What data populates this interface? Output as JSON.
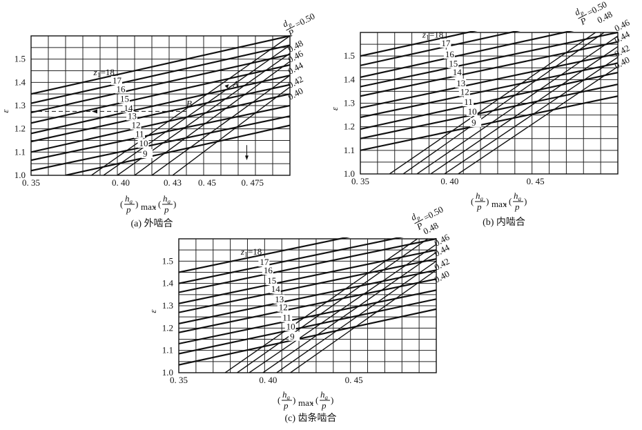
{
  "chart_data": [
    {
      "type": "line",
      "caption": "(a) 外啮合",
      "xlabel_ha": "h",
      "xlabel_sub_a": "a",
      "xlabel_p": "p",
      "xlabel_max": "max",
      "ylabel": "ε",
      "xlim": [
        0.35,
        0.5
      ],
      "ylim": [
        1.0,
        1.6
      ],
      "xticks": [
        "0. 35",
        "0. 40",
        "0. 43",
        "0. 45",
        "0. 475"
      ],
      "xtick_values": [
        0.35,
        0.4,
        0.43,
        0.45,
        0.475
      ],
      "yticks": [
        "1.0",
        "1.1",
        "1.2",
        "1.3",
        "1.4",
        "1.5"
      ],
      "ytick_values": [
        1.0,
        1.1,
        1.2,
        1.3,
        1.4,
        1.5
      ],
      "z_header": "z",
      "z_sub": "1",
      "z_labels": [
        "=18",
        "17",
        "16",
        "15",
        "14",
        "13",
        "12",
        "11",
        "10",
        "9"
      ],
      "z_lines": [
        {
          "z": 18,
          "points": [
            [
              0.35,
              1.35
            ],
            [
              0.5,
              1.6
            ]
          ]
        },
        {
          "z": 17,
          "points": [
            [
              0.35,
              1.31
            ],
            [
              0.5,
              1.56
            ]
          ]
        },
        {
          "z": 16,
          "points": [
            [
              0.35,
              1.27
            ],
            [
              0.5,
              1.52
            ]
          ]
        },
        {
          "z": 15,
          "points": [
            [
              0.35,
              1.225
            ],
            [
              0.5,
              1.475
            ]
          ]
        },
        {
          "z": 14,
          "points": [
            [
              0.35,
              1.18
            ],
            [
              0.5,
              1.43
            ]
          ]
        },
        {
          "z": 13,
          "points": [
            [
              0.35,
              1.145
            ],
            [
              0.5,
              1.39
            ]
          ]
        },
        {
          "z": 12,
          "points": [
            [
              0.35,
              1.1
            ],
            [
              0.5,
              1.35
            ]
          ]
        },
        {
          "z": 11,
          "points": [
            [
              0.35,
              1.065
            ],
            [
              0.5,
              1.3
            ]
          ]
        },
        {
          "z": 10,
          "points": [
            [
              0.35,
              1.02
            ],
            [
              0.5,
              1.255
            ]
          ]
        },
        {
          "z": 9,
          "points": [
            [
              0.37,
              1.0
            ],
            [
              0.5,
              1.215
            ]
          ]
        }
      ],
      "d_header_num": "d",
      "d_header_sub": "p",
      "d_header_den": "P",
      "d_labels": [
        "=0.50",
        "0.48",
        "0.46",
        "0.44",
        "0.42",
        "0.40"
      ],
      "d_lines": [
        {
          "d": 0.5,
          "points": [
            [
              0.385,
              1.0
            ],
            [
              0.5,
              1.6
            ]
          ]
        },
        {
          "d": 0.48,
          "points": [
            [
              0.392,
              1.0
            ],
            [
              0.5,
              1.56
            ]
          ]
        },
        {
          "d": 0.46,
          "points": [
            [
              0.4,
              1.0
            ],
            [
              0.5,
              1.525
            ]
          ]
        },
        {
          "d": 0.44,
          "points": [
            [
              0.41,
              1.0
            ],
            [
              0.5,
              1.49
            ]
          ]
        },
        {
          "d": 0.42,
          "points": [
            [
              0.42,
              1.0
            ],
            [
              0.5,
              1.43
            ]
          ]
        },
        {
          "d": 0.4,
          "points": [
            [
              0.432,
              1.0
            ],
            [
              0.5,
              1.38
            ]
          ]
        }
      ],
      "annotations": [
        {
          "text": "A",
          "x": 0.467,
          "y": 1.38
        },
        {
          "text": "B",
          "x": 0.44,
          "y": 1.295
        }
      ],
      "reference_line_y": 1.275,
      "reference_line_x": 0.475
    },
    {
      "type": "line",
      "caption": "(b) 内啮合",
      "xlabel_ha": "h",
      "xlabel_sub_a": "a",
      "xlabel_p": "p",
      "xlabel_max": "max",
      "ylabel": "ε",
      "xlim": [
        0.35,
        0.5
      ],
      "ylim": [
        1.0,
        1.6
      ],
      "xticks": [
        "0. 35",
        "0. 40",
        "0. 45"
      ],
      "xtick_values": [
        0.35,
        0.4,
        0.45
      ],
      "yticks": [
        "1.0",
        "1.1",
        "1.2",
        "1.3",
        "1.4",
        "1.5"
      ],
      "ytick_values": [
        1.0,
        1.1,
        1.2,
        1.3,
        1.4,
        1.5
      ],
      "z_header": "z",
      "z_sub": "1",
      "z_labels": [
        "=18",
        "17",
        "16",
        "15",
        "14",
        "13",
        "12",
        "11",
        "10",
        "9"
      ],
      "z_lines": [
        {
          "z": 18,
          "points": [
            [
              0.35,
              1.5
            ],
            [
              0.5,
              1.74
            ]
          ]
        },
        {
          "z": 17,
          "points": [
            [
              0.35,
              1.46
            ],
            [
              0.5,
              1.7
            ]
          ]
        },
        {
          "z": 16,
          "points": [
            [
              0.35,
              1.41
            ],
            [
              0.5,
              1.65
            ]
          ]
        },
        {
          "z": 15,
          "points": [
            [
              0.35,
              1.37
            ],
            [
              0.5,
              1.6
            ]
          ]
        },
        {
          "z": 14,
          "points": [
            [
              0.35,
              1.33
            ],
            [
              0.5,
              1.56
            ]
          ]
        },
        {
          "z": 13,
          "points": [
            [
              0.35,
              1.28
            ],
            [
              0.5,
              1.51
            ]
          ]
        },
        {
          "z": 12,
          "points": [
            [
              0.35,
              1.24
            ],
            [
              0.5,
              1.47
            ]
          ]
        },
        {
          "z": 11,
          "points": [
            [
              0.35,
              1.19
            ],
            [
              0.5,
              1.43
            ]
          ]
        },
        {
          "z": 10,
          "points": [
            [
              0.35,
              1.15
            ],
            [
              0.5,
              1.38
            ]
          ]
        },
        {
          "z": 9,
          "points": [
            [
              0.35,
              1.1
            ],
            [
              0.5,
              1.33
            ]
          ]
        }
      ],
      "d_header_num": "d",
      "d_header_sub": "p",
      "d_header_den": "P",
      "d_labels": [
        "=0.50",
        "0.48",
        "0.46",
        "0.44",
        "0.42",
        "0.40"
      ],
      "d_lines": [
        {
          "d": 0.5,
          "points": [
            [
              0.367,
              1.0
            ],
            [
              0.487,
              1.6
            ]
          ]
        },
        {
          "d": 0.48,
          "points": [
            [
              0.375,
              1.0
            ],
            [
              0.492,
              1.6
            ]
          ]
        },
        {
          "d": 0.46,
          "points": [
            [
              0.383,
              1.0
            ],
            [
              0.5,
              1.585
            ]
          ]
        },
        {
          "d": 0.44,
          "points": [
            [
              0.391,
              1.0
            ],
            [
              0.5,
              1.54
            ]
          ]
        },
        {
          "d": 0.42,
          "points": [
            [
              0.399,
              1.0
            ],
            [
              0.5,
              1.495
            ]
          ]
        },
        {
          "d": 0.4,
          "points": [
            [
              0.407,
              1.0
            ],
            [
              0.5,
              1.455
            ]
          ]
        }
      ]
    },
    {
      "type": "line",
      "caption": "(c) 齿条啮合",
      "xlabel_ha": "h",
      "xlabel_sub_a": "a",
      "xlabel_p": "p",
      "xlabel_max": "max",
      "ylabel": "ε",
      "xlim": [
        0.35,
        0.5
      ],
      "ylim": [
        1.0,
        1.6
      ],
      "xticks": [
        "0. 35",
        "0. 40",
        "0. 45"
      ],
      "xtick_values": [
        0.35,
        0.4,
        0.45
      ],
      "yticks": [
        "1.0",
        "1.1",
        "1.2",
        "1.3",
        "1.4",
        "1.5"
      ],
      "ytick_values": [
        1.0,
        1.1,
        1.2,
        1.3,
        1.4,
        1.5
      ],
      "z_header": "z",
      "z_sub": "1",
      "z_labels": [
        "=18",
        "17",
        "16",
        "15",
        "14",
        "13",
        "12",
        "11",
        "10",
        "9"
      ],
      "z_lines": [
        {
          "z": 18,
          "points": [
            [
              0.35,
              1.45
            ],
            [
              0.5,
              1.69
            ]
          ]
        },
        {
          "z": 17,
          "points": [
            [
              0.35,
              1.4
            ],
            [
              0.5,
              1.64
            ]
          ]
        },
        {
          "z": 16,
          "points": [
            [
              0.35,
              1.36
            ],
            [
              0.5,
              1.6
            ]
          ]
        },
        {
          "z": 15,
          "points": [
            [
              0.35,
              1.31
            ],
            [
              0.5,
              1.55
            ]
          ]
        },
        {
          "z": 14,
          "points": [
            [
              0.35,
              1.27
            ],
            [
              0.5,
              1.51
            ]
          ]
        },
        {
          "z": 13,
          "points": [
            [
              0.35,
              1.22
            ],
            [
              0.5,
              1.46
            ]
          ]
        },
        {
          "z": 12,
          "points": [
            [
              0.35,
              1.18
            ],
            [
              0.5,
              1.42
            ]
          ]
        },
        {
          "z": 11,
          "points": [
            [
              0.35,
              1.13
            ],
            [
              0.5,
              1.37
            ]
          ]
        },
        {
          "z": 10,
          "points": [
            [
              0.35,
              1.085
            ],
            [
              0.5,
              1.33
            ]
          ]
        },
        {
          "z": 9,
          "points": [
            [
              0.35,
              1.035
            ],
            [
              0.5,
              1.285
            ]
          ]
        }
      ],
      "d_header_num": "d",
      "d_header_sub": "p",
      "d_header_den": "P",
      "d_labels": [
        "=0.50",
        "0.48",
        "0.46",
        "0.44",
        "0.42",
        "0.40"
      ],
      "d_lines": [
        {
          "d": 0.5,
          "points": [
            [
              0.377,
              1.0
            ],
            [
              0.489,
              1.6
            ]
          ]
        },
        {
          "d": 0.48,
          "points": [
            [
              0.384,
              1.0
            ],
            [
              0.495,
              1.6
            ]
          ]
        },
        {
          "d": 0.46,
          "points": [
            [
              0.391,
              1.0
            ],
            [
              0.5,
              1.575
            ]
          ]
        },
        {
          "d": 0.44,
          "points": [
            [
              0.399,
              1.0
            ],
            [
              0.5,
              1.54
            ]
          ]
        },
        {
          "d": 0.42,
          "points": [
            [
              0.407,
              1.0
            ],
            [
              0.5,
              1.5
            ]
          ]
        },
        {
          "d": 0.4,
          "points": [
            [
              0.415,
              1.0
            ],
            [
              0.5,
              1.46
            ]
          ]
        }
      ]
    }
  ]
}
